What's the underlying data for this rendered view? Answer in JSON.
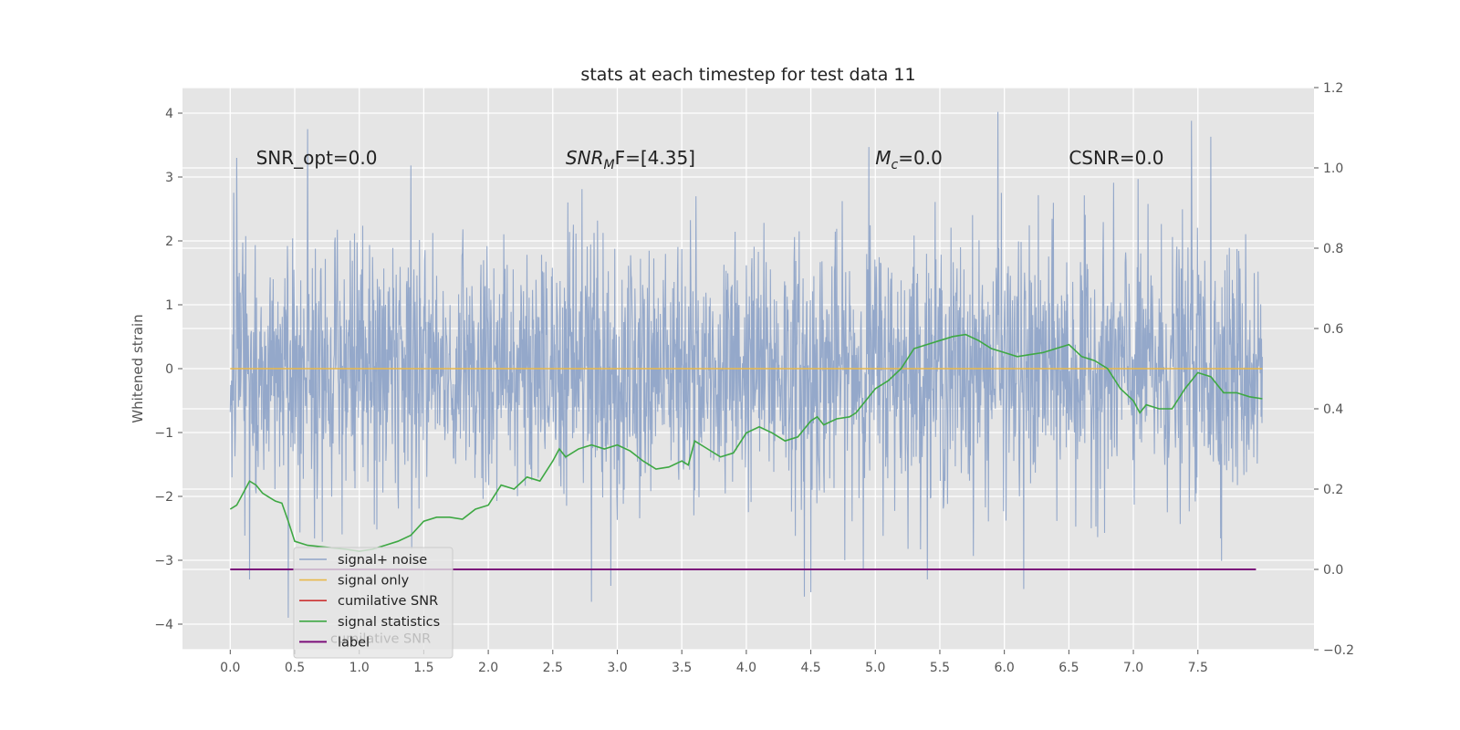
{
  "chart_data": {
    "type": "line",
    "title": "stats at each timestep for test data 11",
    "xlabel": "",
    "ylabel": "Whitened strain",
    "y2label": "",
    "xlim": [
      -0.37,
      8.4
    ],
    "ylim": [
      -4.4,
      4.4
    ],
    "y2lim": [
      -0.2,
      1.2
    ],
    "x_ticks": [
      0.0,
      0.5,
      1.0,
      1.5,
      2.0,
      2.5,
      3.0,
      3.5,
      4.0,
      4.5,
      5.0,
      5.5,
      6.0,
      6.5,
      7.0,
      7.5
    ],
    "x_tick_labels": [
      "0.0",
      "0.5",
      "1.0",
      "1.5",
      "2.0",
      "2.5",
      "3.0",
      "3.5",
      "4.0",
      "4.5",
      "5.0",
      "5.5",
      "6.0",
      "6.5",
      "7.0",
      "7.5"
    ],
    "y_ticks": [
      -4,
      -3,
      -2,
      -1,
      0,
      1,
      2,
      3,
      4
    ],
    "y_tick_labels": [
      "−4",
      "−3",
      "−2",
      "−1",
      "0",
      "1",
      "2",
      "3",
      "4"
    ],
    "y2_ticks": [
      -0.2,
      0.0,
      0.2,
      0.4,
      0.6,
      0.8,
      1.0,
      1.2
    ],
    "y2_tick_labels": [
      "−0.2",
      "0.0",
      "0.2",
      "0.4",
      "0.6",
      "0.8",
      "1.0",
      "1.2"
    ],
    "grid": true,
    "legend_position": "lower-left",
    "annotations": [
      {
        "text": "SNR_opt=0.0",
        "x": 0.2,
        "y": 3.2,
        "math": false
      },
      {
        "text": "SNR",
        "sub": "M",
        "suffix": "F=[4.35]",
        "x": 2.6,
        "y": 3.2,
        "math": true
      },
      {
        "text": "M",
        "sub": "c",
        "suffix": "=0.0",
        "x": 5.0,
        "y": 3.2,
        "math": true
      },
      {
        "text": "CSNR=0.0",
        "x": 6.5,
        "y": 3.2,
        "math": false
      }
    ],
    "series": [
      {
        "name": "signal+ noise",
        "color": "#8fa4c8",
        "axis": "left",
        "kind": "noise",
        "x_range": [
          0.0,
          8.0
        ],
        "approx_std": 1.0,
        "notable_peaks": [
          {
            "x": 0.6,
            "y": 3.75
          },
          {
            "x": 5.95,
            "y": 4.02
          },
          {
            "x": 7.45,
            "y": 3.88
          },
          {
            "x": 7.6,
            "y": 3.63
          },
          {
            "x": 4.95,
            "y": 3.47
          },
          {
            "x": 0.05,
            "y": 3.3
          },
          {
            "x": 1.4,
            "y": 3.18
          },
          {
            "x": 4.45,
            "y": -3.57
          },
          {
            "x": 4.5,
            "y": -3.5
          },
          {
            "x": 2.8,
            "y": -3.65
          },
          {
            "x": 6.15,
            "y": -3.45
          },
          {
            "x": 0.45,
            "y": -3.9
          },
          {
            "x": 0.15,
            "y": -3.3
          },
          {
            "x": 2.95,
            "y": -3.4
          }
        ]
      },
      {
        "name": "signal only",
        "color": "#e8b84a",
        "axis": "left",
        "x": [
          0.0,
          8.0
        ],
        "y": [
          0.0,
          0.0
        ]
      },
      {
        "name": "cumilative SNR",
        "color": "#cc3333",
        "axis": "right",
        "x": [],
        "y": []
      },
      {
        "name": "signal statistics",
        "color": "#3ea843",
        "axis": "right",
        "x": [
          0.0,
          0.05,
          0.1,
          0.15,
          0.2,
          0.25,
          0.3,
          0.35,
          0.4,
          0.45,
          0.5,
          0.6,
          0.75,
          0.9,
          1.0,
          1.1,
          1.2,
          1.3,
          1.4,
          1.5,
          1.6,
          1.7,
          1.8,
          1.9,
          2.0,
          2.1,
          2.2,
          2.3,
          2.4,
          2.5,
          2.55,
          2.6,
          2.7,
          2.8,
          2.9,
          3.0,
          3.1,
          3.2,
          3.3,
          3.4,
          3.5,
          3.55,
          3.6,
          3.7,
          3.8,
          3.9,
          4.0,
          4.1,
          4.2,
          4.3,
          4.4,
          4.5,
          4.55,
          4.6,
          4.7,
          4.8,
          4.85,
          4.9,
          5.0,
          5.1,
          5.2,
          5.3,
          5.4,
          5.5,
          5.6,
          5.7,
          5.8,
          5.9,
          6.0,
          6.1,
          6.2,
          6.3,
          6.4,
          6.5,
          6.6,
          6.7,
          6.8,
          6.9,
          7.0,
          7.05,
          7.1,
          7.2,
          7.3,
          7.4,
          7.5,
          7.6,
          7.7,
          7.8,
          7.9,
          8.0
        ],
        "y": [
          0.15,
          0.16,
          0.19,
          0.22,
          0.21,
          0.19,
          0.18,
          0.17,
          0.165,
          0.12,
          0.07,
          0.06,
          0.055,
          0.05,
          0.045,
          0.05,
          0.06,
          0.07,
          0.085,
          0.12,
          0.13,
          0.13,
          0.125,
          0.15,
          0.16,
          0.21,
          0.2,
          0.23,
          0.22,
          0.27,
          0.3,
          0.28,
          0.3,
          0.31,
          0.3,
          0.31,
          0.295,
          0.27,
          0.25,
          0.255,
          0.27,
          0.26,
          0.32,
          0.3,
          0.28,
          0.29,
          0.34,
          0.355,
          0.34,
          0.32,
          0.33,
          0.37,
          0.38,
          0.36,
          0.375,
          0.38,
          0.39,
          0.41,
          0.45,
          0.47,
          0.5,
          0.55,
          0.56,
          0.57,
          0.58,
          0.585,
          0.57,
          0.55,
          0.54,
          0.53,
          0.535,
          0.54,
          0.55,
          0.56,
          0.53,
          0.52,
          0.5,
          0.45,
          0.42,
          0.39,
          0.41,
          0.4,
          0.4,
          0.45,
          0.49,
          0.48,
          0.44,
          0.44,
          0.43,
          0.425
        ]
      },
      {
        "name": "label",
        "color": "#7b0f7a",
        "axis": "right",
        "x": [
          0.0,
          7.95
        ],
        "y": [
          0.0,
          0.0
        ]
      }
    ],
    "legend": [
      {
        "name": "signal+ noise",
        "color": "#8fa4c8"
      },
      {
        "name": "signal only",
        "color": "#e8b84a"
      },
      {
        "name": "cumilative SNR",
        "color": "#cc3333"
      },
      {
        "name": "signal statistics",
        "color": "#3ea843"
      },
      {
        "name": "label",
        "color": "#7b0f7a"
      }
    ],
    "legend_overlap_text": "cumilative SNR"
  }
}
